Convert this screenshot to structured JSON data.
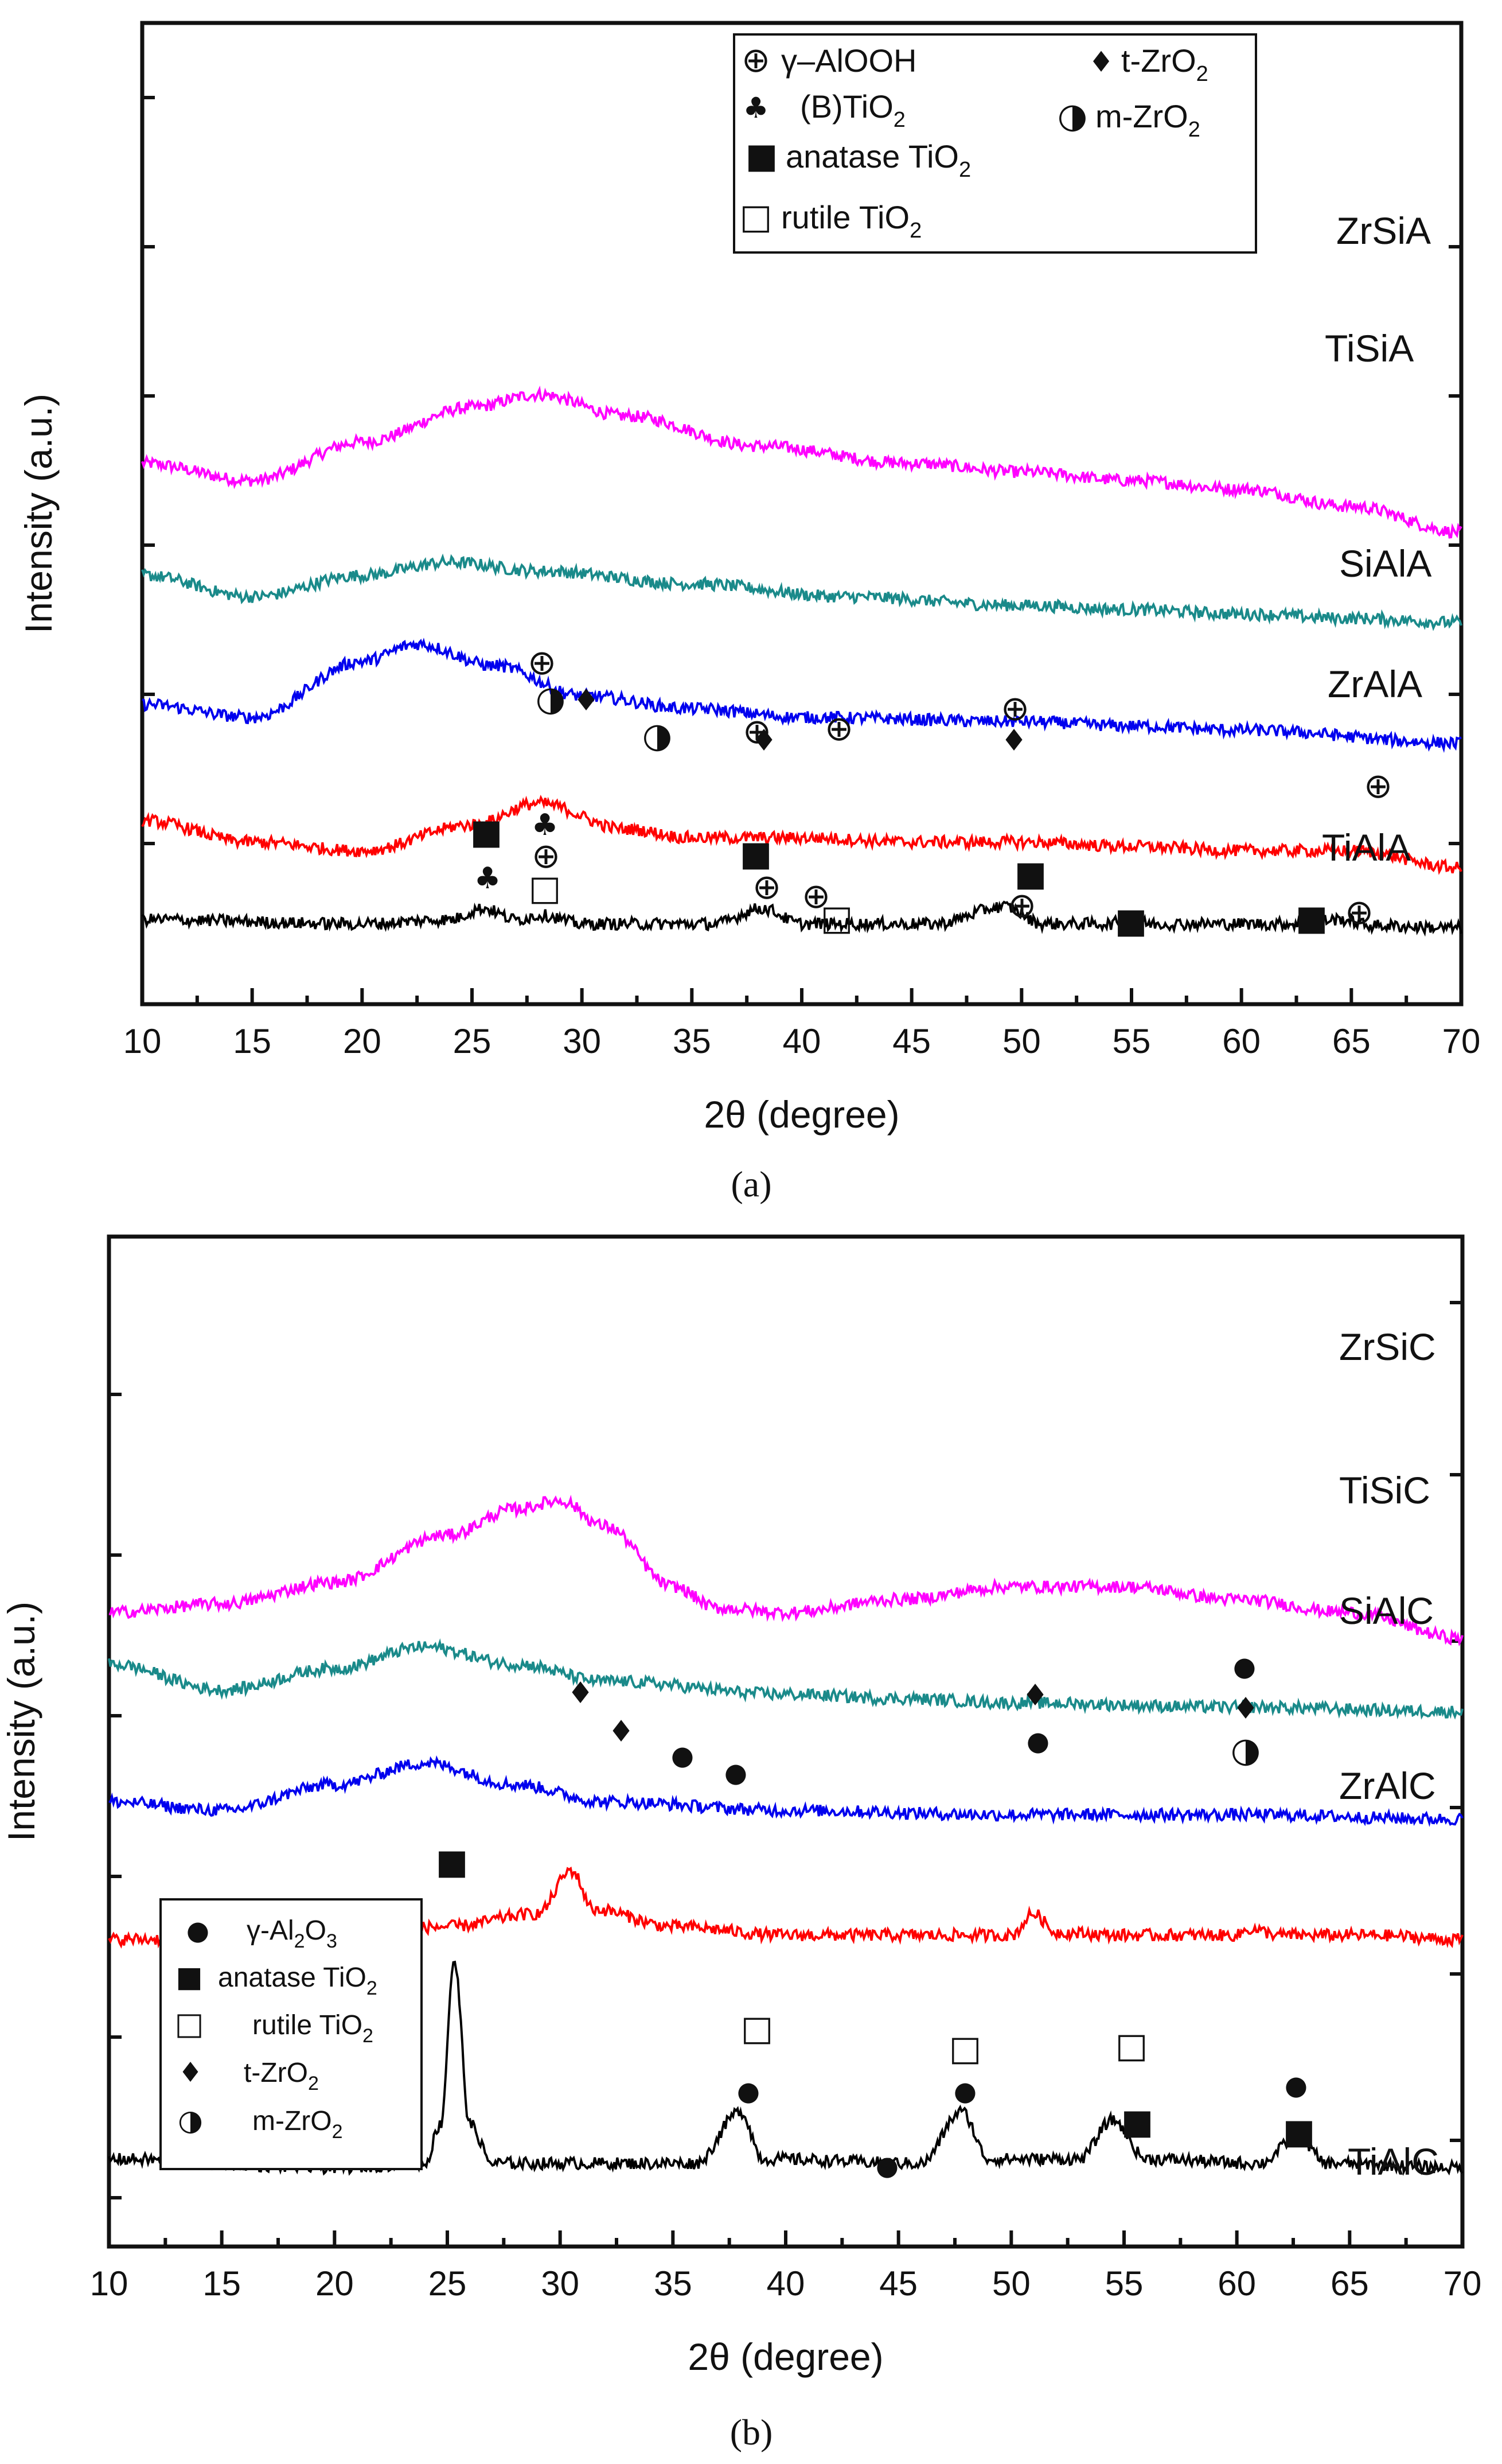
{
  "chart_data": [
    {
      "type": "line",
      "panel_label": "(a)",
      "xlabel": "2θ (degree)",
      "ylabel": "Intensity (a.u.)",
      "xlim": [
        10,
        70
      ],
      "xticks": [
        "10",
        "15",
        "20",
        "25",
        "30",
        "35",
        "40",
        "45",
        "50",
        "55",
        "60",
        "65",
        "70"
      ],
      "legend": [
        {
          "symbol": "⊕",
          "label": "γ–AlOOH"
        },
        {
          "symbol": "♦",
          "label": "t-ZrO",
          "sub": "2"
        },
        {
          "symbol": "♣",
          "label": "(B)TiO",
          "sub": "2"
        },
        {
          "symbol": "◑",
          "label": "m-ZrO",
          "sub": "2"
        },
        {
          "symbol": "■",
          "label": "anatase TiO",
          "sub": "2"
        },
        {
          "symbol": "□",
          "label": "rutile TiO",
          "sub": "2"
        }
      ],
      "series": [
        {
          "name": "ZrSiA",
          "color": "#ff00ff",
          "offset": 5.4,
          "shape": [
            [
              10,
              0.55
            ],
            [
              15,
              0.35
            ],
            [
              20,
              0.8
            ],
            [
              25,
              1.2
            ],
            [
              28,
              1.35
            ],
            [
              32,
              1.1
            ],
            [
              38,
              0.75
            ],
            [
              45,
              0.55
            ],
            [
              50,
              0.45
            ],
            [
              55,
              0.35
            ],
            [
              60,
              0.25
            ],
            [
              65,
              0.05
            ],
            [
              70,
              -0.25
            ]
          ]
        },
        {
          "name": "TiSiA",
          "color": "#1a8a8a",
          "offset": 4.2,
          "shape": [
            [
              10,
              0.45
            ],
            [
              15,
              0.2
            ],
            [
              20,
              0.45
            ],
            [
              24,
              0.6
            ],
            [
              28,
              0.5
            ],
            [
              35,
              0.35
            ],
            [
              42,
              0.2
            ],
            [
              50,
              0.1
            ],
            [
              55,
              0.05
            ],
            [
              60,
              0.0
            ],
            [
              65,
              -0.05
            ],
            [
              70,
              -0.1
            ]
          ]
        },
        {
          "name": "SiAlA",
          "color": "#0000ee",
          "offset": 2.9,
          "shape": [
            [
              10,
              0.25
            ],
            [
              15,
              0.1
            ],
            [
              20,
              0.75
            ],
            [
              22.5,
              0.95
            ],
            [
              26,
              0.7
            ],
            [
              30,
              0.35
            ],
            [
              35,
              0.2
            ],
            [
              40,
              0.1
            ],
            [
              50,
              0.05
            ],
            [
              55,
              0.0
            ],
            [
              60,
              -0.05
            ],
            [
              70,
              -0.2
            ]
          ]
        },
        {
          "name": "ZrAlA",
          "color": "#ff0000",
          "offset": 1.55,
          "shape": [
            [
              10,
              0.25
            ],
            [
              15,
              0.0
            ],
            [
              20,
              -0.1
            ],
            [
              25,
              0.2
            ],
            [
              28,
              0.45
            ],
            [
              32,
              0.15
            ],
            [
              35,
              0.05
            ],
            [
              40,
              0.05
            ],
            [
              45,
              0.0
            ],
            [
              50,
              0.0
            ],
            [
              55,
              -0.05
            ],
            [
              60,
              -0.1
            ],
            [
              65,
              -0.1
            ],
            [
              70,
              -0.3
            ]
          ]
        },
        {
          "name": "TiAlA",
          "color": "#000000",
          "offset": 0.6,
          "shape": [
            [
              10,
              0.05
            ],
            [
              20,
              0.0
            ],
            [
              24,
              0.05
            ],
            [
              25.5,
              0.18
            ],
            [
              27,
              0.05
            ],
            [
              28.2,
              0.1
            ],
            [
              30,
              0.0
            ],
            [
              36,
              0.0
            ],
            [
              38.2,
              0.18
            ],
            [
              40,
              0.0
            ],
            [
              46,
              0.0
            ],
            [
              49.2,
              0.2
            ],
            [
              51,
              0.0
            ],
            [
              54,
              0.0
            ],
            [
              54.7,
              0.04
            ],
            [
              56,
              0.0
            ],
            [
              62,
              0.0
            ],
            [
              64.5,
              0.05
            ],
            [
              66,
              -0.02
            ],
            [
              70,
              -0.05
            ]
          ]
        }
      ]
    },
    {
      "type": "line",
      "panel_label": "(b)",
      "xlabel": "2θ (degree)",
      "ylabel": "Intensity (a.u.)",
      "xlim": [
        10,
        70
      ],
      "xticks": [
        "10",
        "15",
        "20",
        "25",
        "30",
        "35",
        "40",
        "45",
        "50",
        "55",
        "60",
        "65",
        "70"
      ],
      "legend": [
        {
          "symbol": "●",
          "label": "γ-Al",
          "sub": "2",
          "label2": "O",
          "sub2": "3"
        },
        {
          "symbol": "■",
          "label": "anatase TiO",
          "sub": "2"
        },
        {
          "symbol": "□",
          "label": "rutile TiO",
          "sub": "2"
        },
        {
          "symbol": "♦",
          "label": "t-ZrO",
          "sub": "2"
        },
        {
          "symbol": "◑",
          "label": "m-ZrO",
          "sub": "2"
        }
      ],
      "series": [
        {
          "name": "ZrSiC",
          "color": "#ff00ff",
          "offset": 7.0,
          "shape": [
            [
              10,
              0.0
            ],
            [
              15,
              0.1
            ],
            [
              20,
              0.35
            ],
            [
              25,
              0.9
            ],
            [
              28,
              1.2
            ],
            [
              30,
              1.3
            ],
            [
              32,
              1.0
            ],
            [
              35,
              0.3
            ],
            [
              37,
              0.05
            ],
            [
              40,
              0.0
            ],
            [
              45,
              0.15
            ],
            [
              50,
              0.3
            ],
            [
              55,
              0.3
            ],
            [
              60,
              0.15
            ],
            [
              65,
              0.0
            ],
            [
              70,
              -0.3
            ]
          ]
        },
        {
          "name": "TiSiC",
          "color": "#1a8a8a",
          "offset": 6.05,
          "shape": [
            [
              10,
              0.35
            ],
            [
              15,
              0.05
            ],
            [
              20,
              0.3
            ],
            [
              24,
              0.55
            ],
            [
              28,
              0.35
            ],
            [
              32,
              0.15
            ],
            [
              40,
              0.0
            ],
            [
              45,
              -0.05
            ],
            [
              50,
              -0.1
            ],
            [
              60,
              -0.15
            ],
            [
              70,
              -0.2
            ]
          ]
        },
        {
          "name": "SiAlC",
          "color": "#0000ee",
          "offset": 4.7,
          "shape": [
            [
              10,
              0.1
            ],
            [
              15,
              0.0
            ],
            [
              20,
              0.3
            ],
            [
              24,
              0.55
            ],
            [
              28,
              0.3
            ],
            [
              32,
              0.1
            ],
            [
              40,
              0.0
            ],
            [
              50,
              -0.05
            ],
            [
              60,
              -0.05
            ],
            [
              70,
              -0.1
            ]
          ]
        },
        {
          "name": "ZrAlC",
          "color": "#ff0000",
          "offset": 3.2,
          "shape": [
            [
              10,
              0.0
            ],
            [
              20,
              0.05
            ],
            [
              25,
              0.15
            ],
            [
              29,
              0.3
            ],
            [
              30.5,
              0.8
            ],
            [
              31.5,
              0.35
            ],
            [
              35,
              0.15
            ],
            [
              40,
              0.05
            ],
            [
              45,
              0.05
            ],
            [
              50,
              0.05
            ],
            [
              51,
              0.3
            ],
            [
              52,
              0.08
            ],
            [
              55,
              0.05
            ],
            [
              60,
              0.05
            ],
            [
              60.5,
              0.12
            ],
            [
              62,
              0.05
            ],
            [
              66,
              0.05
            ],
            [
              70,
              0.0
            ]
          ]
        },
        {
          "name": "TiAlC",
          "color": "#000000",
          "offset": 0.55,
          "shape": [
            [
              10,
              0.1
            ],
            [
              20,
              0.0
            ],
            [
              24,
              0.05
            ],
            [
              24.7,
              0.5
            ],
            [
              25.3,
              2.4
            ],
            [
              26,
              0.5
            ],
            [
              27,
              0.05
            ],
            [
              36,
              0.05
            ],
            [
              38,
              0.65
            ],
            [
              39,
              0.1
            ],
            [
              46,
              0.05
            ],
            [
              47.8,
              0.65
            ],
            [
              49,
              0.1
            ],
            [
              53,
              0.1
            ],
            [
              54.5,
              0.55
            ],
            [
              56,
              0.1
            ],
            [
              61,
              0.05
            ],
            [
              62.7,
              0.35
            ],
            [
              64,
              0.05
            ],
            [
              70,
              0.0
            ]
          ]
        }
      ]
    }
  ]
}
